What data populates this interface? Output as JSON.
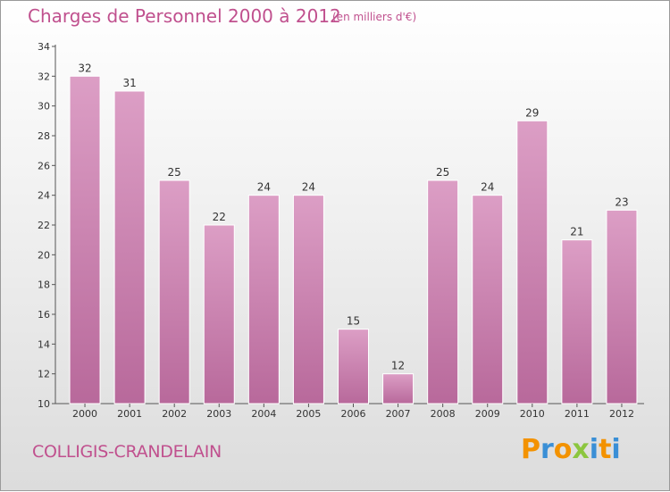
{
  "title": "Charges de Personnel 2000 à 2012",
  "unit_note": "(en milliers d'€)",
  "commune": "COLLIGIS-CRANDELAIN",
  "logo": {
    "letters": [
      "P",
      "r",
      "o",
      "x",
      "i",
      "t",
      "i"
    ],
    "colors": [
      "#f39200",
      "#3a8fd6",
      "#f39200",
      "#8cc63f",
      "#3a8fd6",
      "#f39200",
      "#3a8fd6"
    ]
  },
  "colors": {
    "bar": "#dc9ec5",
    "bar_dark": "#b8699b",
    "title": "#c0508e"
  },
  "chart_data": {
    "type": "bar",
    "categories": [
      "2000",
      "2001",
      "2002",
      "2003",
      "2004",
      "2005",
      "2006",
      "2007",
      "2008",
      "2009",
      "2010",
      "2011",
      "2012"
    ],
    "values": [
      32,
      31,
      25,
      22,
      24,
      24,
      15,
      12,
      25,
      24,
      29,
      21,
      23
    ],
    "ylim": [
      10,
      34
    ],
    "yticks": [
      10,
      12,
      14,
      16,
      18,
      20,
      22,
      24,
      26,
      28,
      30,
      32,
      34
    ],
    "grid": false,
    "xlabel": "",
    "ylabel": ""
  }
}
